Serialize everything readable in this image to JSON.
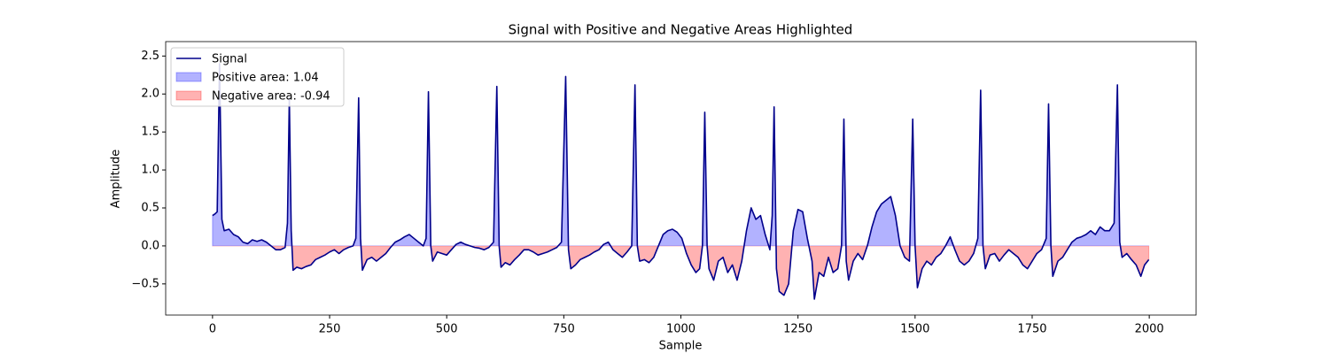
{
  "chart_data": {
    "type": "line",
    "title": "Signal with Positive and Negative Areas Highlighted",
    "xlabel": "Sample",
    "ylabel": "Amplitude",
    "xlim": [
      -100,
      2100
    ],
    "ylim": [
      -0.91,
      2.69
    ],
    "xticks": [
      0,
      250,
      500,
      750,
      1000,
      1250,
      1500,
      1750,
      2000
    ],
    "yticks": [
      {
        "value": -0.5,
        "label": "−0.5"
      },
      {
        "value": 0,
        "label": "0.0"
      },
      {
        "value": 0.5,
        "label": "0.5"
      },
      {
        "value": 1,
        "label": "1.0"
      },
      {
        "value": 1.5,
        "label": "1.5"
      },
      {
        "value": 2,
        "label": "2.0"
      },
      {
        "value": 2.5,
        "label": "2.5"
      }
    ],
    "legend": "upper left",
    "x": [
      0,
      5,
      10,
      15,
      20,
      25,
      35,
      45,
      55,
      65,
      75,
      85,
      95,
      105,
      115,
      125,
      135,
      145,
      155,
      160,
      164,
      168,
      172,
      180,
      190,
      200,
      210,
      220,
      230,
      240,
      250,
      260,
      270,
      280,
      290,
      300,
      306,
      312,
      316,
      320,
      330,
      340,
      350,
      360,
      370,
      380,
      390,
      400,
      410,
      420,
      430,
      440,
      450,
      456,
      461,
      466,
      470,
      480,
      490,
      500,
      510,
      520,
      530,
      540,
      550,
      560,
      570,
      580,
      590,
      600,
      607,
      612,
      616,
      625,
      635,
      645,
      655,
      665,
      675,
      685,
      695,
      705,
      715,
      725,
      735,
      745,
      754,
      760,
      765,
      775,
      785,
      795,
      805,
      815,
      825,
      835,
      845,
      855,
      865,
      875,
      885,
      895,
      902,
      907,
      912,
      922,
      932,
      942,
      952,
      962,
      972,
      982,
      992,
      1002,
      1012,
      1022,
      1032,
      1040,
      1046,
      1051,
      1056,
      1060,
      1070,
      1080,
      1090,
      1100,
      1110,
      1120,
      1130,
      1140,
      1150,
      1160,
      1170,
      1180,
      1190,
      1195,
      1199,
      1204,
      1210,
      1220,
      1230,
      1240,
      1250,
      1260,
      1270,
      1280,
      1285,
      1295,
      1305,
      1315,
      1325,
      1335,
      1343,
      1348,
      1353,
      1358,
      1368,
      1378,
      1388,
      1398,
      1408,
      1418,
      1428,
      1438,
      1448,
      1458,
      1468,
      1478,
      1488,
      1495,
      1500,
      1505,
      1515,
      1525,
      1535,
      1545,
      1555,
      1565,
      1575,
      1585,
      1595,
      1605,
      1615,
      1625,
      1634,
      1640,
      1645,
      1650,
      1660,
      1670,
      1680,
      1690,
      1700,
      1710,
      1720,
      1730,
      1740,
      1750,
      1760,
      1770,
      1780,
      1785,
      1790,
      1794,
      1805,
      1815,
      1825,
      1835,
      1845,
      1855,
      1865,
      1875,
      1885,
      1895,
      1905,
      1915,
      1925,
      1932,
      1937,
      1942,
      1952,
      1962,
      1972,
      1982,
      1990,
      1999
    ],
    "series": [
      {
        "name": "Signal",
        "color": "#00008b",
        "values": [
          0.4,
          0.42,
          0.45,
          2.4,
          0.35,
          0.2,
          0.22,
          0.15,
          0.12,
          0.05,
          0.03,
          0.08,
          0.06,
          0.08,
          0.05,
          0.0,
          -0.05,
          -0.05,
          -0.02,
          0.3,
          1.95,
          0.2,
          -0.32,
          -0.28,
          -0.3,
          -0.27,
          -0.25,
          -0.18,
          -0.15,
          -0.12,
          -0.08,
          -0.05,
          -0.1,
          -0.05,
          -0.02,
          0.0,
          0.1,
          1.95,
          0.1,
          -0.32,
          -0.18,
          -0.15,
          -0.2,
          -0.15,
          -0.1,
          -0.02,
          0.05,
          0.08,
          0.12,
          0.15,
          0.1,
          0.05,
          0.0,
          0.1,
          2.03,
          0.0,
          -0.2,
          -0.08,
          -0.1,
          -0.12,
          -0.05,
          0.02,
          0.05,
          0.02,
          0.0,
          -0.02,
          -0.03,
          -0.05,
          -0.02,
          0.05,
          2.1,
          0.0,
          -0.28,
          -0.22,
          -0.25,
          -0.18,
          -0.12,
          -0.05,
          -0.05,
          -0.08,
          -0.12,
          -0.1,
          -0.08,
          -0.05,
          -0.02,
          0.05,
          2.23,
          -0.05,
          -0.3,
          -0.25,
          -0.18,
          -0.15,
          -0.12,
          -0.08,
          -0.05,
          0.02,
          0.05,
          -0.05,
          -0.1,
          -0.15,
          -0.08,
          0.0,
          2.12,
          0.0,
          -0.2,
          -0.18,
          -0.22,
          -0.15,
          0.0,
          0.15,
          0.2,
          0.22,
          0.18,
          0.1,
          -0.1,
          -0.25,
          -0.35,
          -0.3,
          0.0,
          1.76,
          0.0,
          -0.3,
          -0.45,
          -0.2,
          -0.15,
          -0.35,
          -0.25,
          -0.45,
          -0.2,
          0.2,
          0.5,
          0.35,
          0.4,
          0.15,
          -0.05,
          0.4,
          1.83,
          -0.3,
          -0.6,
          -0.65,
          -0.5,
          0.2,
          0.48,
          0.45,
          0.1,
          -0.2,
          -0.7,
          -0.35,
          -0.4,
          -0.15,
          -0.35,
          -0.3,
          0.0,
          1.67,
          -0.2,
          -0.45,
          -0.2,
          -0.1,
          -0.18,
          0.0,
          0.25,
          0.45,
          0.55,
          0.6,
          0.65,
          0.4,
          0.0,
          -0.15,
          -0.2,
          1.67,
          0.0,
          -0.55,
          -0.3,
          -0.2,
          -0.25,
          -0.15,
          -0.1,
          0.0,
          0.12,
          -0.05,
          -0.2,
          -0.25,
          -0.2,
          -0.1,
          0.1,
          2.05,
          0.0,
          -0.3,
          -0.12,
          -0.1,
          -0.2,
          -0.12,
          -0.05,
          -0.1,
          -0.15,
          -0.25,
          -0.3,
          -0.2,
          -0.1,
          -0.05,
          0.1,
          1.87,
          0.0,
          -0.4,
          -0.2,
          -0.15,
          -0.05,
          0.05,
          0.1,
          0.12,
          0.15,
          0.2,
          0.15,
          0.25,
          0.2,
          0.2,
          0.3,
          2.12,
          0.05,
          -0.15,
          -0.1,
          -0.18,
          -0.25,
          -0.4,
          -0.25,
          -0.18
        ]
      }
    ],
    "areas": [
      {
        "name": "Positive area: 1.04",
        "color": "#0000ff",
        "side": "positive"
      },
      {
        "name": "Negative area: -0.94",
        "color": "#ff0000",
        "side": "negative"
      }
    ]
  }
}
